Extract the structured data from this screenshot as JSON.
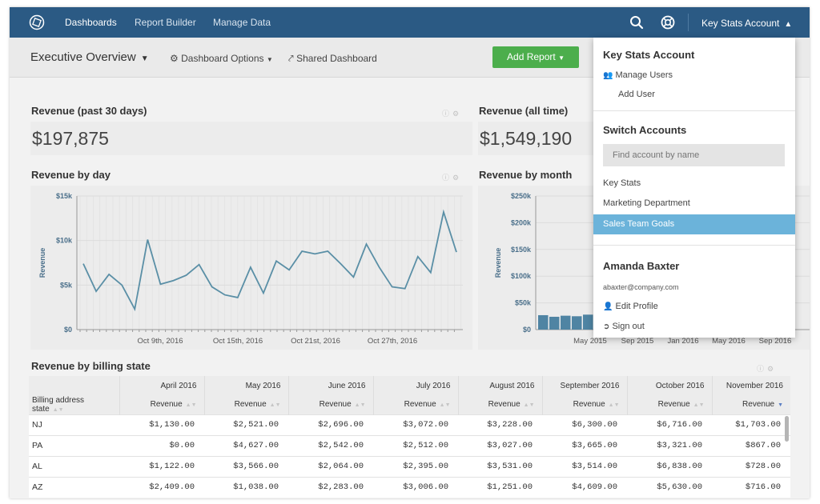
{
  "topnav": {
    "items": [
      "Dashboards",
      "Report Builder",
      "Manage Data"
    ],
    "account_label": "Key Stats Account",
    "colors": {
      "bar": "#2b5a84"
    }
  },
  "dashbar": {
    "title": "Executive Overview",
    "options_label": "Dashboard Options",
    "shared_label": "Shared Dashboard",
    "add_report_label": "Add Report"
  },
  "kpis": [
    {
      "title": "Revenue (past 30 days)",
      "value": "$197,875"
    },
    {
      "title": "Revenue (all time)",
      "value": "$1,549,190"
    }
  ],
  "charts": {
    "by_day_title": "Revenue by day",
    "by_month_title": "Revenue by month"
  },
  "chart_data": [
    {
      "type": "line",
      "title": "Revenue by day",
      "ylabel": "Revenue",
      "ylim": [
        0,
        15000
      ],
      "yticks": [
        "$15k",
        "$10k",
        "$5k",
        "$0"
      ],
      "xticks": [
        "Oct 9th, 2016",
        "Oct 15th, 2016",
        "Oct 21st, 2016",
        "Oct 27th, 2016"
      ],
      "x": [
        "Oct 3",
        "Oct 4",
        "Oct 5",
        "Oct 6",
        "Oct 7",
        "Oct 8",
        "Oct 9",
        "Oct 10",
        "Oct 11",
        "Oct 12",
        "Oct 13",
        "Oct 14",
        "Oct 15",
        "Oct 16",
        "Oct 17",
        "Oct 18",
        "Oct 19",
        "Oct 20",
        "Oct 21",
        "Oct 22",
        "Oct 23",
        "Oct 24",
        "Oct 25",
        "Oct 26",
        "Oct 27",
        "Oct 28",
        "Oct 29",
        "Oct 30",
        "Oct 31",
        "Nov 1"
      ],
      "values": [
        7400,
        4300,
        6200,
        5000,
        2300,
        10100,
        5100,
        5500,
        6100,
        7300,
        4800,
        3900,
        3600,
        7000,
        4100,
        7700,
        6700,
        8800,
        8500,
        8800,
        7400,
        5900,
        9600,
        7000,
        4800,
        4600,
        8200,
        6400,
        13200,
        8700
      ],
      "line_color": "#5a8fa6",
      "grid": true
    },
    {
      "type": "bar",
      "title": "Revenue by month",
      "ylabel": "Revenue",
      "ylim": [
        0,
        250000
      ],
      "yticks": [
        "$250k",
        "$200k",
        "$150k",
        "$100k",
        "$50k",
        "$0"
      ],
      "xticks": [
        "May 2015",
        "Sep 2015",
        "Jan 2016",
        "May 2016",
        "Sep 2016"
      ],
      "categories": [
        "Jan 2015",
        "Feb 2015",
        "Mar 2015",
        "Apr 2015",
        "May 2015",
        "Jun 2015"
      ],
      "values": [
        27000,
        24000,
        26000,
        25000,
        28000,
        30000
      ],
      "bar_color": "#4f84a3"
    }
  ],
  "table": {
    "title": "Revenue by billing state",
    "months": [
      "April 2016",
      "May 2016",
      "June 2016",
      "July 2016",
      "August 2016",
      "September 2016",
      "October 2016",
      "November 2016"
    ],
    "first_col_header": "Billing address state",
    "metric_header": "Revenue",
    "rows": [
      {
        "state": "NJ",
        "values": [
          "$1,130.00",
          "$2,521.00",
          "$2,696.00",
          "$3,072.00",
          "$3,228.00",
          "$6,300.00",
          "$6,716.00",
          "$1,703.00"
        ]
      },
      {
        "state": "PA",
        "values": [
          "$0.00",
          "$4,627.00",
          "$2,542.00",
          "$2,512.00",
          "$3,027.00",
          "$3,665.00",
          "$3,321.00",
          "$867.00"
        ]
      },
      {
        "state": "AL",
        "values": [
          "$1,122.00",
          "$3,566.00",
          "$2,064.00",
          "$2,395.00",
          "$3,531.00",
          "$3,514.00",
          "$6,838.00",
          "$728.00"
        ]
      },
      {
        "state": "AZ",
        "values": [
          "$2,409.00",
          "$1,038.00",
          "$2,283.00",
          "$3,006.00",
          "$1,251.00",
          "$4,609.00",
          "$5,630.00",
          "$716.00"
        ]
      }
    ]
  },
  "dropdown": {
    "account_heading": "Key Stats Account",
    "manage_users": "Manage Users",
    "add_user": "Add User",
    "switch_heading": "Switch Accounts",
    "find_placeholder": "Find account by name",
    "accounts": [
      "Key Stats",
      "Marketing Department",
      "Sales Team Goals"
    ],
    "selected_account": "Sales Team Goals",
    "user_name": "Amanda Baxter",
    "user_email": "abaxter@company.com",
    "edit_profile": "Edit Profile",
    "sign_out": "Sign out",
    "selected_color": "#6bb3da"
  }
}
